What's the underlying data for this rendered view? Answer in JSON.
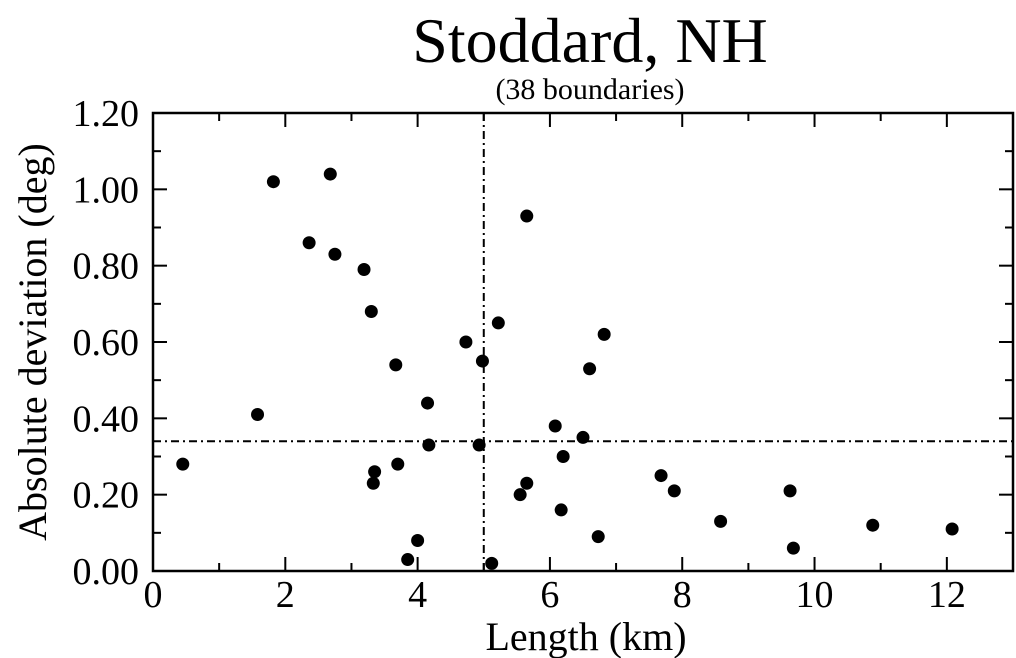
{
  "chart_data": {
    "type": "scatter",
    "title": "Stoddard, NH",
    "subtitle": "(38 boundaries)",
    "xlabel": "Length (km)",
    "ylabel": "Absolute deviation (deg)",
    "xlim": [
      0,
      13
    ],
    "ylim": [
      0,
      1.2
    ],
    "x_ticks": [
      0,
      2,
      4,
      6,
      8,
      10,
      12
    ],
    "x_tick_labels": [
      "0",
      "2",
      "4",
      "6",
      "8",
      "10",
      "12"
    ],
    "y_ticks": [
      0,
      0.2,
      0.4,
      0.6,
      0.8,
      1.0,
      1.2
    ],
    "y_tick_labels": [
      "0.00",
      "0.20",
      "0.40",
      "0.60",
      "0.80",
      "1.00",
      "1.20"
    ],
    "grid": false,
    "reference_lines": {
      "vertical_x": 5.0,
      "horizontal_y": 0.34
    },
    "points": [
      {
        "x": 0.45,
        "y": 0.28
      },
      {
        "x": 1.58,
        "y": 0.41
      },
      {
        "x": 1.82,
        "y": 1.02
      },
      {
        "x": 2.36,
        "y": 0.86
      },
      {
        "x": 2.68,
        "y": 1.04
      },
      {
        "x": 2.75,
        "y": 0.83
      },
      {
        "x": 3.19,
        "y": 0.79
      },
      {
        "x": 3.3,
        "y": 0.68
      },
      {
        "x": 3.33,
        "y": 0.23
      },
      {
        "x": 3.35,
        "y": 0.26
      },
      {
        "x": 3.67,
        "y": 0.54
      },
      {
        "x": 3.7,
        "y": 0.28
      },
      {
        "x": 3.85,
        "y": 0.03
      },
      {
        "x": 4.0,
        "y": 0.08
      },
      {
        "x": 4.15,
        "y": 0.44
      },
      {
        "x": 4.17,
        "y": 0.33
      },
      {
        "x": 4.73,
        "y": 0.6
      },
      {
        "x": 4.93,
        "y": 0.33
      },
      {
        "x": 4.98,
        "y": 0.55
      },
      {
        "x": 5.12,
        "y": 0.02
      },
      {
        "x": 5.22,
        "y": 0.65
      },
      {
        "x": 5.55,
        "y": 0.2
      },
      {
        "x": 5.65,
        "y": 0.93
      },
      {
        "x": 5.65,
        "y": 0.23
      },
      {
        "x": 6.08,
        "y": 0.38
      },
      {
        "x": 6.17,
        "y": 0.16
      },
      {
        "x": 6.2,
        "y": 0.3
      },
      {
        "x": 6.5,
        "y": 0.35
      },
      {
        "x": 6.6,
        "y": 0.53
      },
      {
        "x": 6.73,
        "y": 0.09
      },
      {
        "x": 6.82,
        "y": 0.62
      },
      {
        "x": 7.68,
        "y": 0.25
      },
      {
        "x": 7.88,
        "y": 0.21
      },
      {
        "x": 8.58,
        "y": 0.13
      },
      {
        "x": 9.63,
        "y": 0.21
      },
      {
        "x": 9.68,
        "y": 0.06
      },
      {
        "x": 10.88,
        "y": 0.12
      },
      {
        "x": 12.08,
        "y": 0.11
      }
    ]
  }
}
